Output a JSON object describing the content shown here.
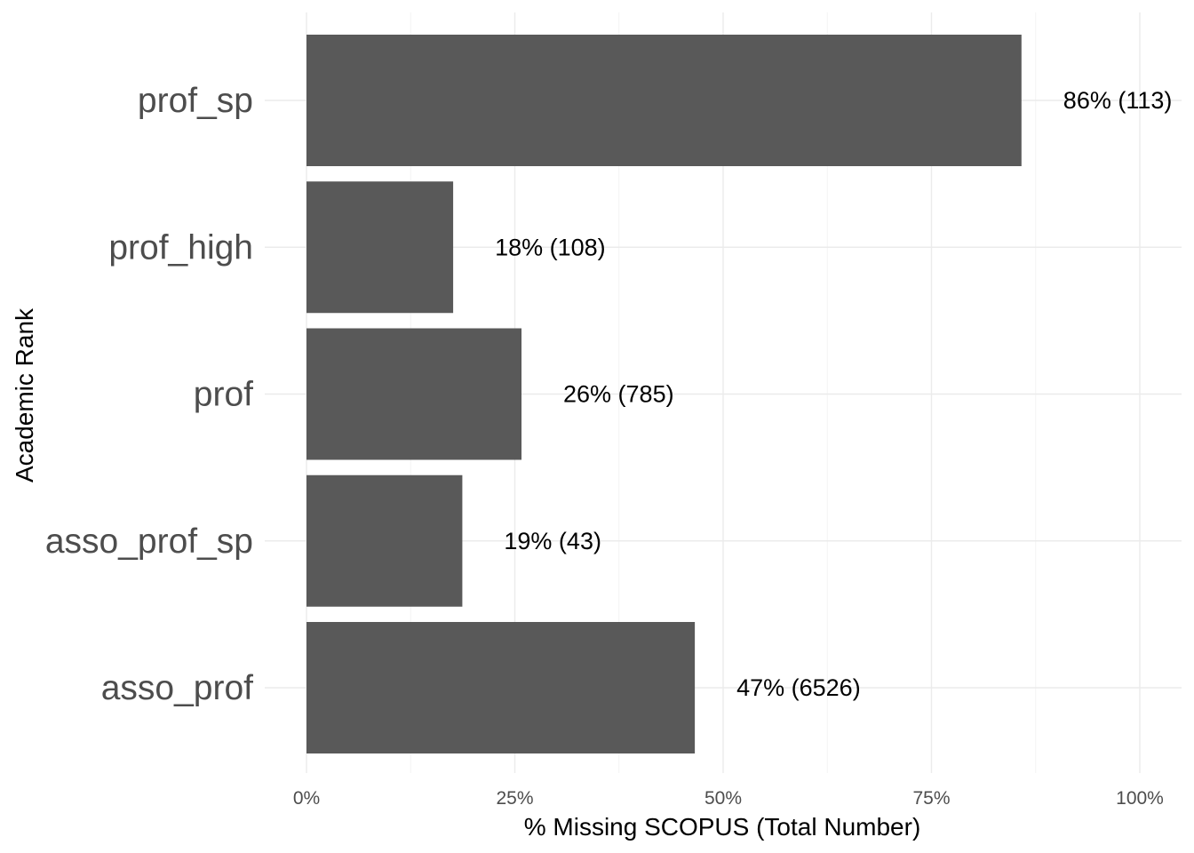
{
  "chart_data": {
    "type": "bar",
    "orientation": "horizontal",
    "xlabel": "% Missing SCOPUS (Total Number)",
    "ylabel": "Academic Rank",
    "xlim": [
      0,
      100
    ],
    "x_ticks": [
      0,
      25,
      50,
      75,
      100
    ],
    "x_tick_labels": [
      "0%",
      "25%",
      "50%",
      "75%",
      "100%"
    ],
    "grid": true,
    "legend": "none",
    "bar_color": "#595959",
    "categories": [
      "prof_sp",
      "prof_high",
      "prof",
      "asso_prof_sp",
      "asso_prof"
    ],
    "values": [
      85.8,
      17.6,
      25.8,
      18.7,
      46.6
    ],
    "data_labels": [
      "86% (113)",
      "18% (108)",
      "26% (785)",
      "19% (43)",
      "47% (6526)"
    ]
  }
}
